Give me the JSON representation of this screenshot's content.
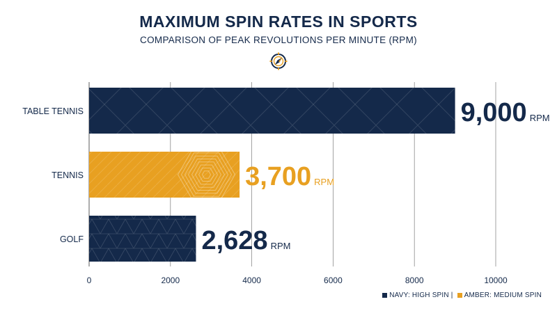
{
  "header": {
    "title": "MAXIMUM SPIN RATES IN SPORTS",
    "subtitle": "COMPARISON OF PEAK REVOLUTIONS PER MINUTE (RPM)"
  },
  "icons": {
    "emblem": "compass-icon"
  },
  "colors": {
    "navy": "#14294a",
    "amber": "#e8a021",
    "grid": "#8a8a8a"
  },
  "legend": {
    "items": [
      {
        "label": "NAVY: HIGH SPIN |",
        "color": "#14294a"
      },
      {
        "label": "AMBER: MEDIUM SPIN",
        "color": "#e8a021"
      }
    ]
  },
  "chart_data": {
    "type": "bar",
    "orientation": "horizontal",
    "title": "MAXIMUM SPIN RATES IN SPORTS",
    "subtitle": "COMPARISON OF PEAK REVOLUTIONS PER MINUTE (RPM)",
    "categories": [
      "TABLE TENNIS",
      "TENNIS",
      "GOLF"
    ],
    "values": [
      9000,
      3700,
      2628
    ],
    "value_labels": [
      "9,000",
      "3,700",
      "2,628"
    ],
    "unit": "RPM",
    "bar_colors": [
      "#14294a",
      "#e8a021",
      "#14294a"
    ],
    "xlim": [
      0,
      10000
    ],
    "xticks": [
      0,
      2000,
      4000,
      6000,
      8000,
      10000
    ],
    "xlabel": "",
    "ylabel": "",
    "grid": "vertical",
    "legend_position": "bottom-right"
  }
}
